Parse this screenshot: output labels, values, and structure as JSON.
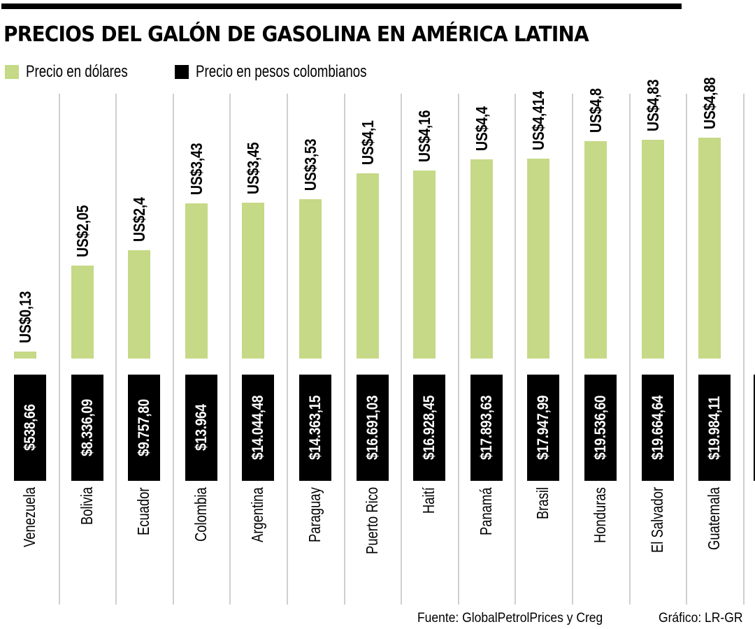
{
  "header": {
    "title": "PRECIOS DEL GALÓN DE GASOLINA EN AMÉRICA LATINA"
  },
  "legend": [
    {
      "label": "Precio en dólares",
      "color": "#c5d986"
    },
    {
      "label": "Precio en pesos colombianos",
      "color": "#000000"
    }
  ],
  "footer": {
    "source": "Fuente: GlobalPetrolPrices y Creg",
    "credit": "Gráfico: LR-GR"
  },
  "colors": {
    "usd_bar": "#c5d986",
    "cop_box": "#000000",
    "separator": "#cfcfcf"
  },
  "countries": [
    {
      "name": "Venezuela",
      "usd_label": "US$0,13",
      "cop_label": "$538,66"
    },
    {
      "name": "Bolivia",
      "usd_label": "US$2,05",
      "cop_label": "$8.336,09"
    },
    {
      "name": "Ecuador",
      "usd_label": "US$2,4",
      "cop_label": "$9.757,80"
    },
    {
      "name": "Colombia",
      "usd_label": "US$3,43",
      "cop_label": "$13.964"
    },
    {
      "name": "Argentina",
      "usd_label": "US$3,45",
      "cop_label": "$14.044,48"
    },
    {
      "name": "Paraguay",
      "usd_label": "US$3,53",
      "cop_label": "$14.363,15"
    },
    {
      "name": "Puerto Rico",
      "usd_label": "US$4,1",
      "cop_label": "$16.691,03"
    },
    {
      "name": "Haití",
      "usd_label": "US$4,16",
      "cop_label": "$16.928,45"
    },
    {
      "name": "Panamá",
      "usd_label": "US$4,4",
      "cop_label": "$17.893,63"
    },
    {
      "name": "Brasil",
      "usd_label": "US$4,414",
      "cop_label": "$17.947,99"
    },
    {
      "name": "Honduras",
      "usd_label": "US$4,8",
      "cop_label": "$19.536,60"
    },
    {
      "name": "El Salvador",
      "usd_label": "US$4,83",
      "cop_label": "$19.664,64"
    },
    {
      "name": "Guatemala",
      "usd_label": "US$4,88",
      "cop_label": "$19.984,11"
    }
  ],
  "chart_data": {
    "type": "bar",
    "title": "PRECIOS DEL GALÓN DE GASOLINA EN AMÉRICA LATINA",
    "xlabel": "",
    "ylabel": "",
    "legend_position": "top-left",
    "grid": false,
    "categories": [
      "Venezuela",
      "Bolivia",
      "Ecuador",
      "Colombia",
      "Argentina",
      "Paraguay",
      "Puerto Rico",
      "Haití",
      "Panamá",
      "Brasil",
      "Honduras",
      "El Salvador",
      "Guatemala"
    ],
    "series": [
      {
        "name": "Precio en dólares",
        "unit": "USD",
        "values": [
          0.13,
          2.05,
          2.4,
          3.43,
          3.45,
          3.53,
          4.1,
          4.16,
          4.4,
          4.414,
          4.8,
          4.83,
          4.88
        ]
      },
      {
        "name": "Precio en pesos colombianos",
        "unit": "COP",
        "values": [
          538.66,
          8336.09,
          9757.8,
          13964,
          14044.48,
          14363.15,
          16691.03,
          16928.45,
          17893.63,
          17947.99,
          19536.6,
          19664.64,
          19984.11
        ]
      }
    ],
    "ylim": [
      0,
      5
    ],
    "source": "Fuente: GlobalPetrolPrices y Creg",
    "credit": "Gráfico: LR-GR"
  }
}
